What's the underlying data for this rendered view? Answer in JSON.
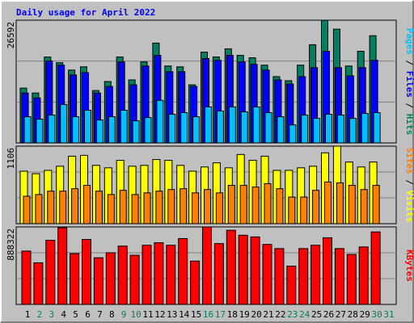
{
  "chart_data": [
    {
      "type": "bar",
      "title": "Daily usage for April 2022",
      "categories": [
        "1",
        "2",
        "3",
        "4",
        "5",
        "6",
        "7",
        "8",
        "9",
        "10",
        "11",
        "12",
        "13",
        "14",
        "15",
        "16",
        "17",
        "18",
        "19",
        "20",
        "21",
        "22",
        "23",
        "24",
        "25",
        "26",
        "27",
        "28",
        "29",
        "30",
        "31"
      ],
      "category_colors": [
        "#000000",
        "#008060",
        "#008060",
        "#000000",
        "#000000",
        "#000000",
        "#000000",
        "#000000",
        "#008060",
        "#008060",
        "#000000",
        "#000000",
        "#000000",
        "#000000",
        "#000000",
        "#008060",
        "#008060",
        "#000000",
        "#000000",
        "#000000",
        "#000000",
        "#000000",
        "#008060",
        "#008060",
        "#000000",
        "#000000",
        "#000000",
        "#000000",
        "#000000",
        "#008060",
        "#008060"
      ],
      "legend_separator": " / ",
      "ylim": [
        0,
        26592
      ],
      "yticks": [
        26592
      ],
      "series": [
        {
          "name": "Hits",
          "color": "#008060",
          "values": [
            11879,
            10815,
            18617,
            17375,
            15780,
            16489,
            11347,
            13298,
            18617,
            13652,
            17553,
            21631,
            16666,
            16489,
            12588,
            19680,
            18617,
            20390,
            18971,
            18439,
            16844,
            14361,
            13475,
            16844,
            21276,
            26592,
            24645,
            16666,
            19858,
            23226,
            0
          ]
        },
        {
          "name": "Files",
          "color": "#0000ff",
          "values": [
            10815,
            9752,
            17730,
            16844,
            14716,
            15248,
            10815,
            12234,
            17553,
            12588,
            16666,
            18971,
            15425,
            15425,
            12234,
            18262,
            17907,
            18971,
            17553,
            17021,
            15780,
            13652,
            12766,
            14361,
            16312,
            19858,
            16312,
            14539,
            16312,
            17907,
            0
          ]
        },
        {
          "name": "Pages",
          "color": "#00c0ff",
          "values": [
            5674,
            5142,
            6028,
            8333,
            5674,
            7092,
            4964,
            5674,
            7092,
            4787,
            5496,
            9220,
            6206,
            6560,
            5674,
            7801,
            6915,
            7801,
            6737,
            7801,
            6560,
            5674,
            3901,
            6028,
            5319,
            6206,
            6028,
            5319,
            6383,
            6560,
            0
          ]
        }
      ]
    },
    {
      "type": "bar",
      "ylim": [
        0,
        1106
      ],
      "yticks": [
        1106
      ],
      "series": [
        {
          "name": "Visits",
          "color": "#ffff00",
          "values": [
            749,
            713,
            761,
            820,
            963,
            975,
            832,
            797,
            904,
            820,
            832,
            916,
            904,
            832,
            749,
            809,
            868,
            797,
            987,
            904,
            963,
            761,
            761,
            797,
            820,
            1011,
            1106,
            880,
            809,
            880,
            0
          ]
        },
        {
          "name": "Sites",
          "color": "#ff8000",
          "values": [
            392,
            416,
            464,
            464,
            499,
            547,
            464,
            416,
            476,
            416,
            440,
            464,
            487,
            499,
            440,
            487,
            440,
            547,
            547,
            523,
            571,
            499,
            380,
            380,
            476,
            595,
            583,
            547,
            487,
            547,
            0
          ]
        }
      ]
    },
    {
      "type": "bar",
      "ylim": [
        0,
        888322
      ],
      "yticks": [
        888322
      ],
      "series": [
        {
          "name": "KBytes",
          "color": "#ff0000",
          "values": [
            611328,
            477600,
            735504,
            878784,
            582672,
            745056,
            534912,
            592224,
            668640,
            563568,
            678192,
            706848,
            678192,
            754608,
            496704,
            888322,
            697296,
            850128,
            792816,
            773712,
            687744,
            639984,
            439392,
            639984,
            678192,
            764160,
            639984,
            573120,
            659088,
            831024,
            0
          ]
        }
      ]
    }
  ]
}
